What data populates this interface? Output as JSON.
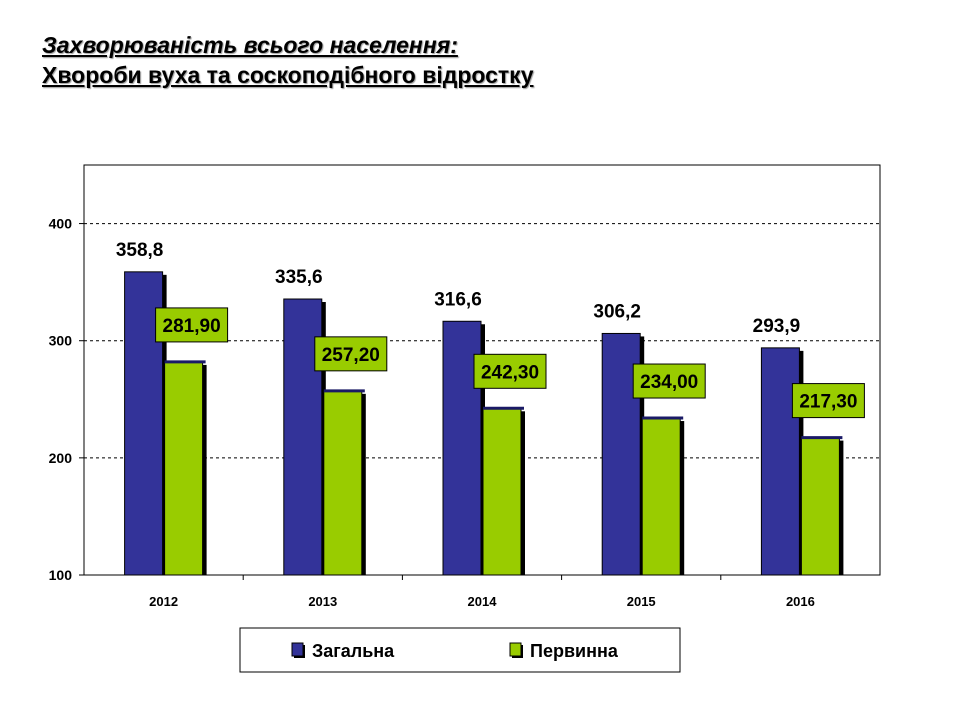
{
  "title": {
    "line1": "Захворюваність всього населення:",
    "line2": "Хвороби вуха та соскоподібного відростку"
  },
  "colors": {
    "total": "#333399",
    "primary": "#99cc00",
    "primary_label_bg": "#99cc00",
    "grid": "#000000"
  },
  "chart_data": {
    "type": "bar",
    "categories": [
      "2012",
      "2013",
      "2014",
      "2015",
      "2016"
    ],
    "series": [
      {
        "name": "Загальна",
        "values": [
          358.8,
          335.6,
          316.6,
          306.2,
          293.9
        ],
        "labels": [
          "358,8",
          "335,6",
          "316,6",
          "306,2",
          "293,9"
        ]
      },
      {
        "name": "Первинна",
        "values": [
          281.9,
          257.2,
          242.3,
          234.0,
          217.3
        ],
        "labels": [
          "281,90",
          "257,20",
          "242,30",
          "234,00",
          "217,30"
        ]
      }
    ],
    "ylim": [
      100,
      450
    ],
    "yticks": [
      100,
      200,
      300,
      400
    ],
    "grid": true,
    "legend_position": "bottom",
    "xlabel": "",
    "ylabel": ""
  }
}
